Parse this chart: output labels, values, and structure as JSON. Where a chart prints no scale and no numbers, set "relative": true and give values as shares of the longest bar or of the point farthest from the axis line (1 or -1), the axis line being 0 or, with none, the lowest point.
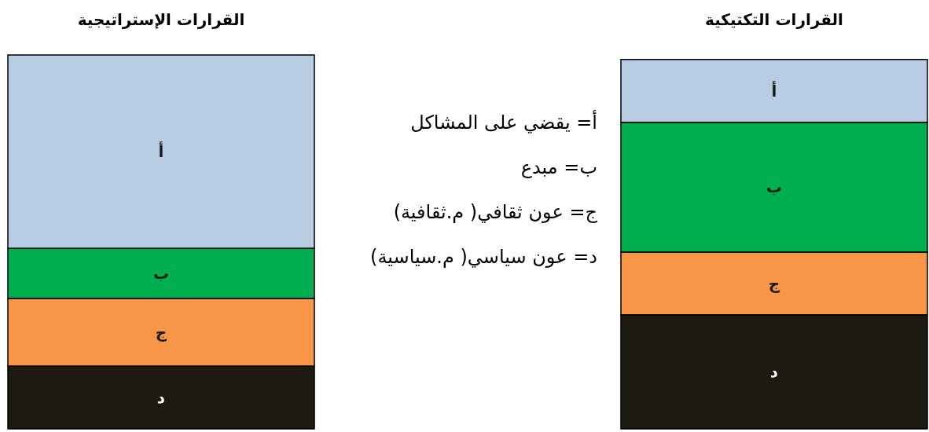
{
  "chart_data": {
    "type": "bar",
    "stacked": true,
    "relative": true,
    "categories": [
      "القرارات الإستراتيجية",
      "القرارات التكتيكية"
    ],
    "series": [
      {
        "name": "د",
        "color": "#1d1b11",
        "values": [
          0.168,
          0.305
        ]
      },
      {
        "name": "ج",
        "color": "#f79646",
        "values": [
          0.181,
          0.168
        ]
      },
      {
        "name": "ب",
        "color": "#00b050",
        "values": [
          0.134,
          0.347
        ]
      },
      {
        "name": "أ",
        "color": "#b8cce4",
        "values": [
          0.517,
          0.168
        ]
      }
    ],
    "annotations": [
      "أ= يقضي على المشاكل",
      "ب= مبدع",
      "ج= عون ثقافي( م.ثقافية)",
      "د= عون سياسي( م.سياسية)"
    ]
  }
}
